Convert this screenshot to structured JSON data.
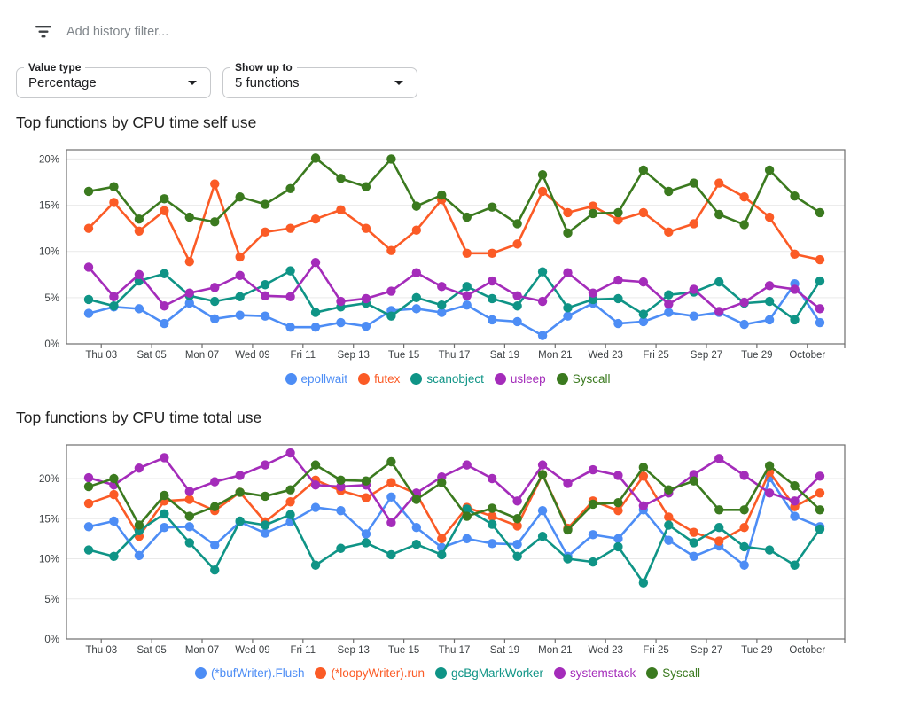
{
  "filter_bar": {
    "icon": "filter-list-icon",
    "placeholder": "Add history filter..."
  },
  "controls": {
    "value_type": {
      "label": "Value type",
      "value": "Percentage"
    },
    "show_up_to": {
      "label": "Show up to",
      "value": "5 functions"
    }
  },
  "chart_data": [
    {
      "type": "line",
      "title": "Top functions by CPU time self use",
      "xlabel": "",
      "ylabel": "",
      "ylim": [
        0,
        21
      ],
      "yticks": [
        0,
        5,
        10,
        15,
        20
      ],
      "ytick_labels": [
        "0%",
        "5%",
        "10%",
        "15%",
        "20%"
      ],
      "grid": true,
      "legend_position": "bottom",
      "x_labels": [
        "Thu 03",
        "Sat 05",
        "Mon 07",
        "Wed 09",
        "Fri 11",
        "Sep 13",
        "Tue 15",
        "Thu 17",
        "Sat 19",
        "Mon 21",
        "Wed 23",
        "Fri 25",
        "Sep 27",
        "Tue 29",
        "October"
      ],
      "points_per_label": 2,
      "series": [
        {
          "name": "epollwait",
          "color": "#4d8df5",
          "values": [
            3.3,
            4.0,
            3.8,
            2.2,
            4.4,
            2.7,
            3.1,
            3.0,
            1.8,
            1.8,
            2.3,
            1.9,
            3.6,
            3.8,
            3.4,
            4.2,
            2.6,
            2.4,
            0.9,
            3.0,
            4.4,
            2.2,
            2.4,
            3.4,
            3.0,
            3.4,
            2.1,
            2.6,
            6.5,
            2.3
          ]
        },
        {
          "name": "futex",
          "color": "#fb5b26",
          "values": [
            12.5,
            15.3,
            12.2,
            14.4,
            8.9,
            17.3,
            9.4,
            12.1,
            12.5,
            13.5,
            14.5,
            12.5,
            10.1,
            12.3,
            15.6,
            9.8,
            9.8,
            10.8,
            16.5,
            14.2,
            14.9,
            13.4,
            14.2,
            12.1,
            13.0,
            17.4,
            15.9,
            13.7,
            9.7,
            9.1
          ]
        },
        {
          "name": "scanobject",
          "color": "#0f9486",
          "values": [
            4.8,
            4.1,
            6.8,
            7.6,
            5.2,
            4.6,
            5.1,
            6.4,
            7.9,
            3.4,
            4.0,
            4.4,
            3.0,
            5.0,
            4.2,
            6.2,
            4.9,
            4.1,
            7.8,
            3.9,
            4.8,
            4.9,
            3.2,
            5.3,
            5.6,
            6.7,
            4.4,
            4.6,
            2.6,
            6.8
          ]
        },
        {
          "name": "usleep",
          "color": "#a42cba",
          "values": [
            8.3,
            5.1,
            7.5,
            4.1,
            5.5,
            6.1,
            7.4,
            5.2,
            5.1,
            8.8,
            4.6,
            4.9,
            5.7,
            7.7,
            6.2,
            5.2,
            6.8,
            5.2,
            4.6,
            7.7,
            5.5,
            6.9,
            6.7,
            4.3,
            5.9,
            3.5,
            4.5,
            6.3,
            5.9,
            3.8
          ]
        },
        {
          "name": "Syscall",
          "color": "#3b7a1f",
          "values": [
            16.5,
            17.0,
            13.5,
            15.7,
            13.7,
            13.2,
            15.9,
            15.1,
            16.8,
            20.1,
            17.9,
            17.0,
            20.0,
            14.9,
            16.1,
            13.7,
            14.8,
            13.0,
            18.3,
            12.0,
            14.1,
            14.2,
            18.8,
            16.5,
            17.4,
            14.0,
            12.9,
            18.8,
            16.0,
            14.2
          ]
        }
      ]
    },
    {
      "type": "line",
      "title": "Top functions by CPU time total use",
      "xlabel": "",
      "ylabel": "",
      "ylim": [
        0,
        24.2
      ],
      "yticks": [
        0,
        5,
        10,
        15,
        20
      ],
      "ytick_labels": [
        "0%",
        "5%",
        "10%",
        "15%",
        "20%"
      ],
      "grid": true,
      "legend_position": "bottom",
      "x_labels": [
        "Thu 03",
        "Sat 05",
        "Mon 07",
        "Wed 09",
        "Fri 11",
        "Sep 13",
        "Tue 15",
        "Thu 17",
        "Sat 19",
        "Mon 21",
        "Wed 23",
        "Fri 25",
        "Sep 27",
        "Tue 29",
        "October"
      ],
      "points_per_label": 2,
      "series": [
        {
          "name": "(*bufWriter).Flush",
          "color": "#4d8df5",
          "values": [
            14.0,
            14.7,
            10.4,
            13.9,
            14.0,
            11.7,
            14.6,
            13.2,
            14.6,
            16.4,
            16.0,
            13.1,
            17.7,
            13.9,
            11.4,
            12.5,
            11.9,
            11.8,
            16.0,
            10.3,
            13.0,
            12.5,
            16.1,
            12.3,
            10.3,
            11.6,
            9.2,
            20.1,
            15.3,
            14.0
          ]
        },
        {
          "name": "(*loopyWriter).run",
          "color": "#fb5b26",
          "values": [
            16.9,
            18.0,
            12.8,
            17.2,
            17.4,
            16.0,
            18.3,
            14.6,
            17.1,
            19.8,
            18.5,
            17.6,
            19.5,
            18.1,
            12.5,
            16.4,
            15.3,
            14.1,
            20.5,
            13.8,
            17.2,
            16.0,
            20.3,
            15.2,
            13.3,
            12.2,
            13.9,
            20.8,
            16.5,
            18.2
          ]
        },
        {
          "name": "gcBgMarkWorker",
          "color": "#0f9486",
          "values": [
            11.1,
            10.3,
            13.5,
            15.6,
            12.0,
            8.6,
            14.7,
            14.2,
            15.5,
            9.2,
            11.3,
            12.0,
            10.5,
            11.8,
            10.5,
            16.2,
            14.3,
            10.3,
            12.8,
            10.0,
            9.6,
            11.5,
            7.0,
            14.2,
            12.0,
            13.9,
            11.5,
            11.1,
            9.2,
            13.7
          ]
        },
        {
          "name": "systemstack",
          "color": "#a42cba",
          "values": [
            20.1,
            19.2,
            21.3,
            22.6,
            18.4,
            19.6,
            20.4,
            21.7,
            23.2,
            19.2,
            19.0,
            19.2,
            14.5,
            18.2,
            20.2,
            21.7,
            20.0,
            17.2,
            21.7,
            19.4,
            21.1,
            20.4,
            16.6,
            18.2,
            20.5,
            22.5,
            20.4,
            18.2,
            17.2,
            20.3
          ]
        },
        {
          "name": "Syscall",
          "color": "#3b7a1f",
          "values": [
            19.0,
            20.0,
            14.2,
            17.9,
            15.3,
            16.5,
            18.3,
            17.8,
            18.6,
            21.7,
            19.8,
            19.7,
            22.1,
            17.4,
            19.5,
            15.3,
            16.3,
            15.0,
            20.5,
            13.6,
            16.8,
            17.0,
            21.4,
            18.6,
            19.7,
            16.1,
            16.1,
            21.6,
            19.1,
            16.1
          ]
        }
      ]
    }
  ]
}
